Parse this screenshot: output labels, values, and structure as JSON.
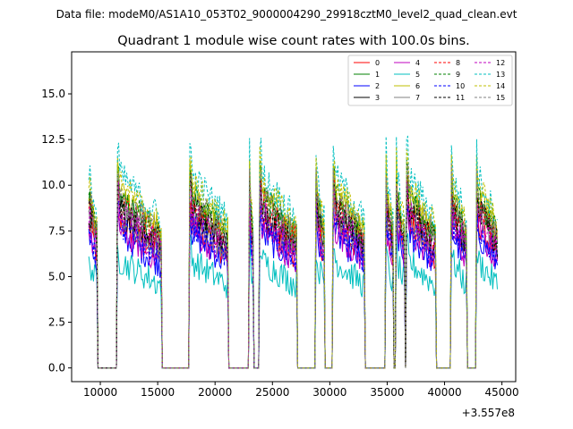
{
  "chart_data": {
    "type": "line",
    "suptitle": "Data file: modeM0/AS1A10_053T02_9000004290_29918cztM0_level2_quad_clean.evt",
    "title": "Quadrant 1 module wise count rates with 100.0s bins.",
    "xlabel": "",
    "ylabel": "",
    "x_offset_label": "+3.557e8",
    "xlim": [
      7500,
      46200
    ],
    "ylim": [
      -0.75,
      17.3
    ],
    "xticks": [
      10000,
      15000,
      20000,
      25000,
      30000,
      35000,
      40000,
      45000
    ],
    "xtick_labels": [
      "10000",
      "15000",
      "20000",
      "25000",
      "30000",
      "35000",
      "40000",
      "45000"
    ],
    "yticks": [
      0.0,
      2.5,
      5.0,
      7.5,
      10.0,
      12.5,
      15.0
    ],
    "ytick_labels": [
      "0.0",
      "2.5",
      "5.0",
      "7.5",
      "10.0",
      "12.5",
      "15.0"
    ],
    "bin_size_s": 100,
    "legend_position": "top-right",
    "gap_level": 0.0,
    "segments": [
      {
        "start": 9000,
        "end": 9700
      },
      {
        "start": 11500,
        "end": 15300
      },
      {
        "start": 17800,
        "end": 21100
      },
      {
        "start": 23000,
        "end": 23300
      },
      {
        "start": 23900,
        "end": 27100
      },
      {
        "start": 28800,
        "end": 29500
      },
      {
        "start": 30300,
        "end": 33000
      },
      {
        "start": 34900,
        "end": 35500
      },
      {
        "start": 35800,
        "end": 36500
      },
      {
        "start": 36700,
        "end": 39200
      },
      {
        "start": 40600,
        "end": 41900
      },
      {
        "start": 42800,
        "end": 44600
      }
    ],
    "series": [
      {
        "name": "0",
        "color": "#ff0000",
        "style": "solid",
        "level": 7.6
      },
      {
        "name": "1",
        "color": "#008000",
        "style": "solid",
        "level": 8.8
      },
      {
        "name": "2",
        "color": "#0000ff",
        "style": "solid",
        "level": 7.0
      },
      {
        "name": "3",
        "color": "#000000",
        "style": "solid",
        "level": 8.2
      },
      {
        "name": "4",
        "color": "#bf00bf",
        "style": "solid",
        "level": 7.2
      },
      {
        "name": "5",
        "color": "#00bfbf",
        "style": "solid",
        "level": 5.6
      },
      {
        "name": "6",
        "color": "#bfbf00",
        "style": "solid",
        "level": 9.2
      },
      {
        "name": "7",
        "color": "#808080",
        "style": "solid",
        "level": 8.0
      },
      {
        "name": "8",
        "color": "#ff0000",
        "style": "dashed",
        "level": 8.6
      },
      {
        "name": "9",
        "color": "#008000",
        "style": "dashed",
        "level": 9.0
      },
      {
        "name": "10",
        "color": "#0000ff",
        "style": "dashed",
        "level": 7.4
      },
      {
        "name": "11",
        "color": "#000000",
        "style": "dashed",
        "level": 8.4
      },
      {
        "name": "12",
        "color": "#bf00bf",
        "style": "dashed",
        "level": 8.1
      },
      {
        "name": "13",
        "color": "#00bfbf",
        "style": "dashed",
        "level": 10.1
      },
      {
        "name": "14",
        "color": "#bfbf00",
        "style": "dashed",
        "level": 9.6
      },
      {
        "name": "15",
        "color": "#808080",
        "style": "dashed",
        "level": 8.9
      }
    ]
  }
}
